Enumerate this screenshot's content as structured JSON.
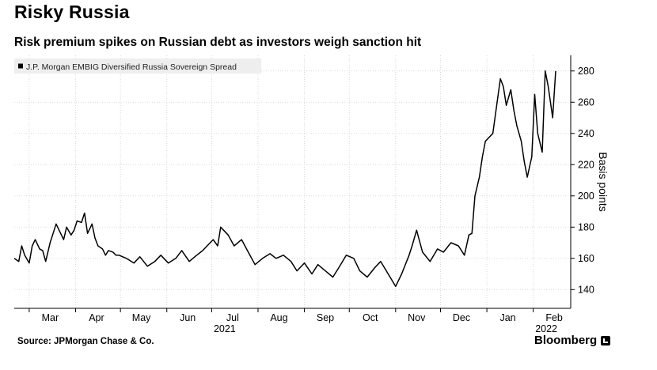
{
  "header": {
    "title": "Risky Russia",
    "subtitle": "Risk premium spikes on Russian debt as investors weigh sanction hit"
  },
  "footer": {
    "source": "Source: JPMorgan Chase & Co.",
    "brand": "Bloomberg",
    "brand_icon": "bloomberg-logo-icon"
  },
  "colors": {
    "line": "#000000",
    "grid": "#d9d9d9",
    "legend_bg": "#eeeeee"
  },
  "chart_data": {
    "type": "line",
    "legend": "J.P. Morgan EMBIG Diversified Russia Sovereign Spread",
    "legend_position": "top-left",
    "ylabel": "Basis points",
    "ylim": [
      128,
      290
    ],
    "yticks": [
      140,
      160,
      180,
      200,
      220,
      240,
      260,
      280
    ],
    "y_axis_side": "right",
    "grid": true,
    "x_months": [
      "Mar",
      "Apr",
      "May",
      "Jun",
      "Jul",
      "Aug",
      "Sep",
      "Oct",
      "Nov",
      "Dec",
      "Jan",
      "Feb"
    ],
    "x_years": [
      {
        "label": "2021",
        "under_month": "Jul"
      },
      {
        "label": "2022",
        "under_month": "Feb"
      }
    ],
    "x": [
      "2021-02-19",
      "2021-02-22",
      "2021-02-24",
      "2021-02-26",
      "2021-03-01",
      "2021-03-03",
      "2021-03-05",
      "2021-03-08",
      "2021-03-10",
      "2021-03-12",
      "2021-03-15",
      "2021-03-17",
      "2021-03-19",
      "2021-03-22",
      "2021-03-24",
      "2021-03-26",
      "2021-03-29",
      "2021-03-31",
      "2021-04-02",
      "2021-04-05",
      "2021-04-07",
      "2021-04-09",
      "2021-04-12",
      "2021-04-14",
      "2021-04-16",
      "2021-04-19",
      "2021-04-21",
      "2021-04-23",
      "2021-04-26",
      "2021-04-28",
      "2021-04-30",
      "2021-05-05",
      "2021-05-10",
      "2021-05-14",
      "2021-05-19",
      "2021-05-24",
      "2021-05-28",
      "2021-06-02",
      "2021-06-07",
      "2021-06-11",
      "2021-06-16",
      "2021-06-21",
      "2021-06-25",
      "2021-06-30",
      "2021-07-02",
      "2021-07-05",
      "2021-07-07",
      "2021-07-12",
      "2021-07-16",
      "2021-07-21",
      "2021-07-26",
      "2021-07-30",
      "2021-08-04",
      "2021-08-09",
      "2021-08-13",
      "2021-08-18",
      "2021-08-23",
      "2021-08-27",
      "2021-09-01",
      "2021-09-06",
      "2021-09-10",
      "2021-09-15",
      "2021-09-20",
      "2021-09-24",
      "2021-09-29",
      "2021-10-04",
      "2021-10-08",
      "2021-10-13",
      "2021-10-18",
      "2021-10-22",
      "2021-10-27",
      "2021-11-01",
      "2021-11-05",
      "2021-11-10",
      "2021-11-12",
      "2021-11-15",
      "2021-11-19",
      "2021-11-24",
      "2021-11-29",
      "2021-12-03",
      "2021-12-08",
      "2021-12-13",
      "2021-12-17",
      "2021-12-20",
      "2021-12-22",
      "2021-12-24",
      "2021-12-27",
      "2021-12-29",
      "2021-12-31",
      "2022-01-05",
      "2022-01-10",
      "2022-01-12",
      "2022-01-14",
      "2022-01-17",
      "2022-01-19",
      "2022-01-21",
      "2022-01-24",
      "2022-01-26",
      "2022-01-28",
      "2022-01-31",
      "2022-02-02",
      "2022-02-04",
      "2022-02-07",
      "2022-02-09",
      "2022-02-11",
      "2022-02-14",
      "2022-02-16"
    ],
    "series": [
      {
        "values": [
          160,
          158,
          168,
          162,
          157,
          168,
          172,
          166,
          165,
          158,
          170,
          176,
          182,
          176,
          172,
          180,
          175,
          178,
          184,
          183,
          189,
          176,
          182,
          173,
          168,
          166,
          162,
          165,
          164,
          162,
          162,
          160,
          157,
          161,
          155,
          158,
          162,
          157,
          160,
          165,
          158,
          162,
          165,
          170,
          172,
          168,
          180,
          175,
          168,
          172,
          163,
          156,
          160,
          163,
          160,
          162,
          158,
          152,
          157,
          150,
          156,
          152,
          148,
          154,
          162,
          160,
          152,
          148,
          154,
          158,
          150,
          142,
          150,
          162,
          168,
          178,
          164,
          158,
          166,
          164,
          170,
          168,
          162,
          175,
          176,
          200,
          212,
          225,
          235,
          240,
          275,
          270,
          258,
          268,
          255,
          245,
          235,
          222,
          212,
          225,
          265,
          240,
          228,
          280,
          270,
          250,
          280
        ]
      }
    ]
  }
}
